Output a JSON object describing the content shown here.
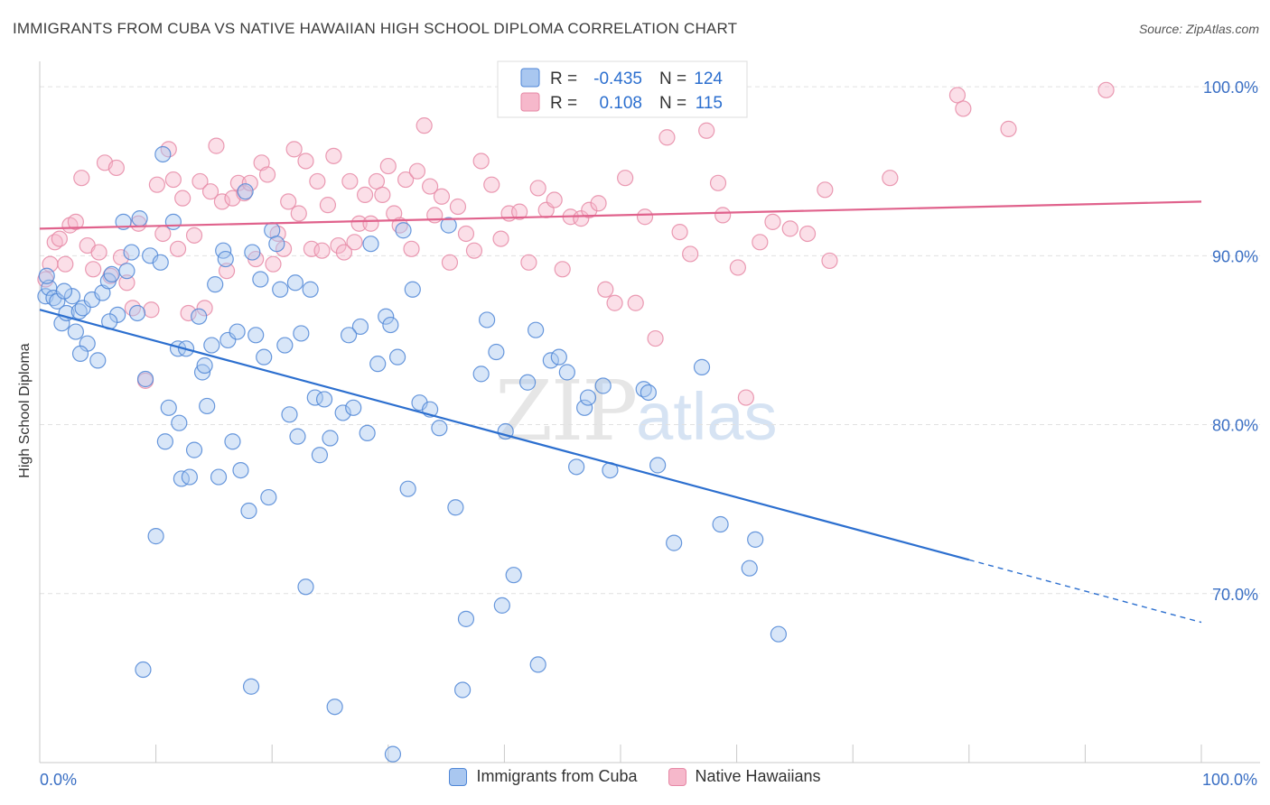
{
  "title": "IMMIGRANTS FROM CUBA VS NATIVE HAWAIIAN HIGH SCHOOL DIPLOMA CORRELATION CHART",
  "source": "Source: ZipAtlas.com",
  "watermark": {
    "zip": "ZIP",
    "atlas": "atlas"
  },
  "colors": {
    "cuba_fill": "#a9c7f0",
    "cuba_stroke": "#4f86d6",
    "cuba_line": "#2c6fcf",
    "hawaii_fill": "#f6b8cb",
    "hawaii_stroke": "#e689a6",
    "hawaii_line": "#e0628c",
    "axis_label": "#3a6fc4",
    "grid": "#e1e1e1"
  },
  "legend": {
    "r_label": "R =",
    "n_label": "N =",
    "rows": [
      {
        "r": "-0.435",
        "n": "124"
      },
      {
        "r": "0.108",
        "n": "115"
      }
    ]
  },
  "chart_data": {
    "type": "scatter",
    "title": "IMMIGRANTS FROM CUBA VS NATIVE HAWAIIAN HIGH SCHOOL DIPLOMA CORRELATION CHART",
    "xlabel": "",
    "ylabel": "High School Diploma",
    "xlim": [
      0,
      100
    ],
    "ylim": [
      60.0,
      101.5
    ],
    "x_tick_labels": [
      "0.0%",
      "100.0%"
    ],
    "y_ticks": [
      100,
      90,
      80,
      70
    ],
    "y_tick_labels": [
      "100.0%",
      "90.0%",
      "80.0%",
      "70.0%"
    ],
    "grid": true,
    "legend_position": "top-center",
    "series": [
      {
        "name": "Immigrants from Cuba",
        "r": -0.435,
        "n": 124,
        "trend": {
          "x0": 0,
          "y0": 86.8,
          "x1": 80,
          "y1": 72.0,
          "dashed_to_x": 100,
          "dashed_to_y": 68.3
        },
        "points": [
          [
            0.5,
            87.6
          ],
          [
            0.8,
            88.1
          ],
          [
            1.2,
            87.5
          ],
          [
            1.5,
            87.3
          ],
          [
            1.9,
            86.0
          ],
          [
            2.3,
            86.6
          ],
          [
            2.8,
            87.6
          ],
          [
            3.1,
            85.5
          ],
          [
            3.4,
            86.7
          ],
          [
            3.7,
            86.9
          ],
          [
            4.1,
            84.8
          ],
          [
            4.5,
            87.4
          ],
          [
            5.0,
            83.8
          ],
          [
            5.4,
            87.8
          ],
          [
            5.9,
            88.5
          ],
          [
            6.2,
            88.9
          ],
          [
            6.7,
            86.5
          ],
          [
            7.2,
            92.0
          ],
          [
            7.5,
            89.1
          ],
          [
            7.9,
            90.2
          ],
          [
            8.4,
            86.6
          ],
          [
            8.6,
            92.2
          ],
          [
            9.1,
            82.7
          ],
          [
            9.5,
            90.0
          ],
          [
            10.0,
            73.4
          ],
          [
            10.4,
            89.6
          ],
          [
            10.8,
            79.0
          ],
          [
            11.1,
            81.0
          ],
          [
            11.5,
            92.0
          ],
          [
            11.9,
            84.5
          ],
          [
            12.2,
            76.8
          ],
          [
            12.6,
            84.5
          ],
          [
            12.9,
            76.9
          ],
          [
            13.3,
            78.5
          ],
          [
            13.7,
            86.4
          ],
          [
            14.0,
            83.1
          ],
          [
            14.4,
            81.1
          ],
          [
            14.8,
            84.7
          ],
          [
            15.1,
            88.3
          ],
          [
            15.4,
            76.9
          ],
          [
            15.8,
            90.3
          ],
          [
            16.2,
            85.0
          ],
          [
            16.6,
            79.0
          ],
          [
            17.0,
            85.5
          ],
          [
            17.3,
            77.3
          ],
          [
            17.7,
            93.8
          ],
          [
            18.0,
            74.9
          ],
          [
            18.3,
            90.2
          ],
          [
            18.6,
            85.3
          ],
          [
            19.0,
            88.6
          ],
          [
            19.3,
            84.0
          ],
          [
            19.7,
            75.7
          ],
          [
            20.0,
            91.5
          ],
          [
            20.4,
            90.7
          ],
          [
            20.7,
            88.0
          ],
          [
            21.1,
            84.7
          ],
          [
            21.5,
            80.6
          ],
          [
            22.0,
            88.4
          ],
          [
            22.5,
            85.4
          ],
          [
            22.9,
            70.4
          ],
          [
            23.3,
            88.0
          ],
          [
            23.7,
            81.6
          ],
          [
            24.1,
            78.2
          ],
          [
            24.5,
            81.5
          ],
          [
            25.0,
            79.2
          ],
          [
            25.4,
            63.3
          ],
          [
            26.1,
            80.7
          ],
          [
            27.0,
            81.0
          ],
          [
            27.6,
            85.8
          ],
          [
            28.2,
            79.5
          ],
          [
            28.5,
            90.7
          ],
          [
            29.8,
            86.4
          ],
          [
            30.2,
            85.9
          ],
          [
            30.4,
            60.5
          ],
          [
            30.8,
            84.0
          ],
          [
            31.3,
            91.5
          ],
          [
            31.7,
            76.2
          ],
          [
            32.1,
            88.0
          ],
          [
            32.7,
            81.3
          ],
          [
            33.6,
            80.9
          ],
          [
            34.4,
            79.8
          ],
          [
            35.2,
            91.8
          ],
          [
            35.8,
            75.1
          ],
          [
            36.4,
            64.3
          ],
          [
            36.7,
            68.5
          ],
          [
            38.0,
            83.0
          ],
          [
            38.5,
            86.2
          ],
          [
            39.3,
            84.3
          ],
          [
            39.8,
            69.3
          ],
          [
            40.1,
            79.6
          ],
          [
            40.8,
            71.1
          ],
          [
            42.0,
            82.5
          ],
          [
            42.7,
            85.6
          ],
          [
            42.9,
            65.8
          ],
          [
            44.0,
            83.8
          ],
          [
            44.7,
            84.0
          ],
          [
            45.4,
            83.1
          ],
          [
            46.2,
            77.5
          ],
          [
            46.9,
            81.0
          ],
          [
            47.2,
            81.6
          ],
          [
            48.5,
            82.3
          ],
          [
            49.1,
            77.3
          ],
          [
            52.0,
            82.1
          ],
          [
            52.4,
            81.9
          ],
          [
            53.2,
            77.6
          ],
          [
            54.6,
            73.0
          ],
          [
            57.0,
            83.4
          ],
          [
            58.6,
            74.1
          ],
          [
            61.1,
            71.5
          ],
          [
            61.6,
            73.2
          ],
          [
            63.6,
            67.6
          ],
          [
            10.6,
            96.0
          ],
          [
            8.9,
            65.5
          ],
          [
            18.2,
            64.5
          ],
          [
            0.6,
            88.8
          ],
          [
            2.1,
            87.9
          ],
          [
            3.5,
            84.2
          ],
          [
            6.0,
            86.1
          ],
          [
            12.0,
            80.1
          ],
          [
            14.2,
            83.5
          ],
          [
            16.0,
            89.8
          ],
          [
            22.2,
            79.3
          ],
          [
            26.6,
            85.3
          ],
          [
            29.1,
            83.6
          ]
        ]
      },
      {
        "name": "Native Hawaiians",
        "r": 0.108,
        "n": 115,
        "trend": {
          "x0": 0,
          "y0": 91.6,
          "x1": 100,
          "y1": 93.2
        },
        "points": [
          [
            0.5,
            88.6
          ],
          [
            0.9,
            89.5
          ],
          [
            1.3,
            90.8
          ],
          [
            1.7,
            91.0
          ],
          [
            2.2,
            89.5
          ],
          [
            2.6,
            91.8
          ],
          [
            3.1,
            92.0
          ],
          [
            3.6,
            94.6
          ],
          [
            4.1,
            90.6
          ],
          [
            4.6,
            89.2
          ],
          [
            5.1,
            90.2
          ],
          [
            5.6,
            95.5
          ],
          [
            6.1,
            88.8
          ],
          [
            6.6,
            95.2
          ],
          [
            7.0,
            89.9
          ],
          [
            7.5,
            88.4
          ],
          [
            8.0,
            86.9
          ],
          [
            8.5,
            91.9
          ],
          [
            9.1,
            82.6
          ],
          [
            9.6,
            86.8
          ],
          [
            10.1,
            94.2
          ],
          [
            10.6,
            91.3
          ],
          [
            11.1,
            96.3
          ],
          [
            11.5,
            94.5
          ],
          [
            11.9,
            90.4
          ],
          [
            12.3,
            93.4
          ],
          [
            12.8,
            86.6
          ],
          [
            13.3,
            91.2
          ],
          [
            13.8,
            94.4
          ],
          [
            14.2,
            86.9
          ],
          [
            14.7,
            93.8
          ],
          [
            15.2,
            96.5
          ],
          [
            15.7,
            93.2
          ],
          [
            16.1,
            89.1
          ],
          [
            16.6,
            93.4
          ],
          [
            17.1,
            94.3
          ],
          [
            17.6,
            93.7
          ],
          [
            18.1,
            94.3
          ],
          [
            18.6,
            89.8
          ],
          [
            19.1,
            95.5
          ],
          [
            19.6,
            94.8
          ],
          [
            20.1,
            89.5
          ],
          [
            20.5,
            91.3
          ],
          [
            21.0,
            90.4
          ],
          [
            21.4,
            93.2
          ],
          [
            21.9,
            96.3
          ],
          [
            22.3,
            92.5
          ],
          [
            22.9,
            95.6
          ],
          [
            23.4,
            90.4
          ],
          [
            23.9,
            94.4
          ],
          [
            24.3,
            90.3
          ],
          [
            24.8,
            93.0
          ],
          [
            25.3,
            95.9
          ],
          [
            25.7,
            90.6
          ],
          [
            26.2,
            90.2
          ],
          [
            26.7,
            94.4
          ],
          [
            27.1,
            90.8
          ],
          [
            27.5,
            91.9
          ],
          [
            28.0,
            93.6
          ],
          [
            28.5,
            91.9
          ],
          [
            29.0,
            94.4
          ],
          [
            29.5,
            93.6
          ],
          [
            30.0,
            95.3
          ],
          [
            30.5,
            92.5
          ],
          [
            31.0,
            91.8
          ],
          [
            31.5,
            94.5
          ],
          [
            32.0,
            90.4
          ],
          [
            32.5,
            95.0
          ],
          [
            33.1,
            97.7
          ],
          [
            33.6,
            94.1
          ],
          [
            34.0,
            92.4
          ],
          [
            34.6,
            93.5
          ],
          [
            35.3,
            89.6
          ],
          [
            36.0,
            92.9
          ],
          [
            36.7,
            91.3
          ],
          [
            37.4,
            90.3
          ],
          [
            38.0,
            95.6
          ],
          [
            38.9,
            94.2
          ],
          [
            39.7,
            91.0
          ],
          [
            40.4,
            92.5
          ],
          [
            41.3,
            92.6
          ],
          [
            42.1,
            89.6
          ],
          [
            42.9,
            94.0
          ],
          [
            43.6,
            92.7
          ],
          [
            44.3,
            93.3
          ],
          [
            45.0,
            89.2
          ],
          [
            45.7,
            92.3
          ],
          [
            46.6,
            92.2
          ],
          [
            47.3,
            92.7
          ],
          [
            48.1,
            93.1
          ],
          [
            48.7,
            88.0
          ],
          [
            49.5,
            87.2
          ],
          [
            50.4,
            94.6
          ],
          [
            51.3,
            87.2
          ],
          [
            52.1,
            92.3
          ],
          [
            53.0,
            85.1
          ],
          [
            54.0,
            97.0
          ],
          [
            55.1,
            91.4
          ],
          [
            56.0,
            90.1
          ],
          [
            57.4,
            97.4
          ],
          [
            58.4,
            94.3
          ],
          [
            58.8,
            92.4
          ],
          [
            60.1,
            89.3
          ],
          [
            60.8,
            81.6
          ],
          [
            62.0,
            90.8
          ],
          [
            63.1,
            92.0
          ],
          [
            64.6,
            91.6
          ],
          [
            66.1,
            91.3
          ],
          [
            67.6,
            93.9
          ],
          [
            68.0,
            89.7
          ],
          [
            73.2,
            94.6
          ],
          [
            79.0,
            99.5
          ],
          [
            79.5,
            98.7
          ],
          [
            83.4,
            97.5
          ],
          [
            91.8,
            99.8
          ]
        ]
      }
    ]
  },
  "bottom_legend": [
    {
      "label": "Immigrants from Cuba"
    },
    {
      "label": "Native Hawaiians"
    }
  ]
}
